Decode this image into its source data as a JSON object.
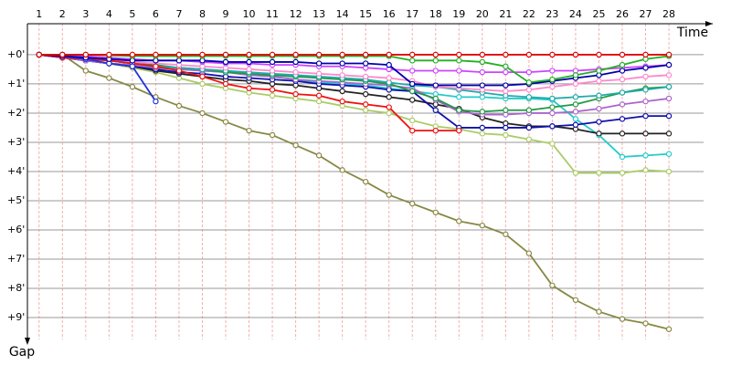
{
  "chart_data": {
    "type": "line",
    "x_label": "Time",
    "y_label": "Gap",
    "x": [
      1,
      2,
      3,
      4,
      5,
      6,
      7,
      8,
      9,
      10,
      11,
      12,
      13,
      14,
      15,
      16,
      17,
      18,
      19,
      20,
      21,
      22,
      23,
      24,
      25,
      26,
      27,
      28
    ],
    "xlim": [
      0.5,
      29.8
    ],
    "xticks": [
      1,
      2,
      3,
      4,
      5,
      6,
      7,
      8,
      9,
      10,
      11,
      12,
      13,
      14,
      15,
      16,
      17,
      18,
      19,
      20,
      21,
      22,
      23,
      24,
      25,
      26,
      27,
      28
    ],
    "ylim": [
      -1.06,
      10
    ],
    "y_inverted": true,
    "yticks": [
      {
        "value": 0,
        "label": "+0'"
      },
      {
        "value": 1,
        "label": "+1'"
      },
      {
        "value": 2,
        "label": "+2'"
      },
      {
        "value": 3,
        "label": "+3'"
      },
      {
        "value": 4,
        "label": "+4'"
      },
      {
        "value": 5,
        "label": "+5'"
      },
      {
        "value": 6,
        "label": "+6'"
      },
      {
        "value": 7,
        "label": "+7'"
      },
      {
        "value": 8,
        "label": "+8'"
      },
      {
        "value": 9,
        "label": "+9'"
      }
    ],
    "grid": true,
    "series": [
      {
        "color": "#888844",
        "values": [
          0,
          0,
          0.55,
          0.8,
          1.1,
          1.45,
          1.75,
          2.0,
          2.3,
          2.6,
          2.75,
          3.1,
          3.45,
          3.95,
          4.35,
          4.8,
          5.1,
          5.4,
          5.7,
          5.85,
          6.15,
          6.8,
          7.9,
          8.4,
          8.8,
          9.05,
          9.2,
          9.4
        ]
      },
      {
        "color": "#aacc66",
        "values": [
          0,
          0.1,
          0.2,
          0.3,
          0.45,
          0.6,
          0.8,
          1.0,
          1.15,
          1.3,
          1.4,
          1.5,
          1.6,
          1.75,
          1.9,
          2.0,
          2.25,
          2.45,
          2.55,
          2.7,
          2.75,
          2.9,
          3.05,
          4.05,
          4.05,
          4.05,
          3.95,
          4.0
        ]
      },
      {
        "color": "#22cccc",
        "values": [
          0,
          0.1,
          0.2,
          0.3,
          0.35,
          0.45,
          0.5,
          0.55,
          0.6,
          0.65,
          0.75,
          0.85,
          0.95,
          1.0,
          1.05,
          1.15,
          1.25,
          1.35,
          1.45,
          1.45,
          1.5,
          1.5,
          1.55,
          2.2,
          2.75,
          3.5,
          3.45,
          3.4
        ]
      },
      {
        "color": "#222222",
        "values": [
          0,
          0.1,
          0.2,
          0.3,
          0.4,
          0.55,
          0.65,
          0.75,
          0.85,
          0.9,
          1.0,
          1.05,
          1.15,
          1.25,
          1.35,
          1.45,
          1.55,
          1.7,
          1.85,
          2.15,
          2.35,
          2.45,
          2.45,
          2.55,
          2.7,
          2.7,
          2.7,
          2.7
        ]
      },
      {
        "color": "#1111aa",
        "values": [
          0,
          0.1,
          0.2,
          0.3,
          0.4,
          0.5,
          0.6,
          0.65,
          0.75,
          0.8,
          0.85,
          0.9,
          1.0,
          1.05,
          1.1,
          1.2,
          1.25,
          1.9,
          2.5,
          2.5,
          2.5,
          2.5,
          2.45,
          2.4,
          2.3,
          2.2,
          2.1,
          2.1
        ]
      },
      {
        "color": "#aa66cc",
        "values": [
          0,
          0.1,
          0.2,
          0.3,
          0.35,
          0.45,
          0.5,
          0.55,
          0.6,
          0.7,
          0.75,
          0.85,
          0.9,
          0.95,
          1.0,
          1.05,
          1.15,
          1.55,
          1.95,
          2.05,
          2.05,
          2.0,
          2.0,
          1.95,
          1.85,
          1.7,
          1.6,
          1.5
        ]
      },
      {
        "color": "#229944",
        "values": [
          0,
          0.05,
          0.1,
          0.2,
          0.3,
          0.35,
          0.45,
          0.5,
          0.6,
          0.65,
          0.7,
          0.75,
          0.8,
          0.85,
          0.9,
          1.0,
          1.25,
          1.5,
          1.9,
          1.95,
          1.9,
          1.9,
          1.8,
          1.7,
          1.5,
          1.3,
          1.15,
          1.1
        ]
      },
      {
        "color": "#22aaaa",
        "values": [
          0,
          0.05,
          0.15,
          0.2,
          0.3,
          0.4,
          0.45,
          0.5,
          0.55,
          0.6,
          0.65,
          0.7,
          0.75,
          0.8,
          0.85,
          0.95,
          1.05,
          1.1,
          1.2,
          1.3,
          1.4,
          1.45,
          1.5,
          1.45,
          1.4,
          1.3,
          1.2,
          1.1
        ]
      },
      {
        "color": "#ff88cc",
        "values": [
          0,
          0.05,
          0.1,
          0.2,
          0.25,
          0.3,
          0.35,
          0.4,
          0.45,
          0.5,
          0.55,
          0.6,
          0.65,
          0.7,
          0.75,
          0.8,
          0.9,
          1.1,
          1.15,
          1.2,
          1.25,
          1.2,
          1.1,
          1.0,
          0.9,
          0.85,
          0.75,
          0.7
        ]
      },
      {
        "color": "#ee1111",
        "values": [
          0,
          0.1,
          0.15,
          0.2,
          0.3,
          0.4,
          0.55,
          0.75,
          1.0,
          1.15,
          1.2,
          1.35,
          1.4,
          1.6,
          1.7,
          1.8,
          2.6,
          2.6,
          2.6,
          null,
          null,
          null,
          null,
          null,
          null,
          null,
          null,
          null
        ]
      },
      {
        "color": "#2233dd",
        "values": [
          0,
          0.05,
          0.15,
          0.3,
          0.4,
          1.6,
          null,
          null,
          null,
          null,
          null,
          null,
          null,
          null,
          null,
          null,
          null,
          null,
          null,
          null,
          null,
          null,
          null,
          null,
          null,
          null,
          null,
          null
        ]
      },
      {
        "color": "#cc44ff",
        "values": [
          0,
          0,
          0.05,
          0.1,
          0.15,
          0.2,
          0.2,
          0.25,
          0.3,
          0.3,
          0.35,
          0.35,
          0.4,
          0.4,
          0.45,
          0.5,
          0.55,
          0.55,
          0.55,
          0.6,
          0.6,
          0.6,
          0.55,
          0.55,
          0.5,
          0.45,
          0.4,
          0.35
        ]
      },
      {
        "color": "#0000aa",
        "values": [
          0,
          0.05,
          0.1,
          0.15,
          0.2,
          0.2,
          0.2,
          0.2,
          0.25,
          0.25,
          0.25,
          0.25,
          0.3,
          0.3,
          0.3,
          0.35,
          1.0,
          1.05,
          1.05,
          1.05,
          1.05,
          1.0,
          0.9,
          0.8,
          0.7,
          0.55,
          0.45,
          0.35
        ]
      },
      {
        "color": "#22b022",
        "values": [
          0,
          0,
          0,
          0.02,
          0.05,
          0.05,
          0.05,
          0.05,
          0.05,
          0.05,
          0.05,
          0.05,
          0.05,
          0.05,
          0.05,
          0.05,
          0.2,
          0.2,
          0.2,
          0.25,
          0.4,
          0.95,
          0.85,
          0.7,
          0.55,
          0.35,
          0.15,
          0.05
        ]
      },
      {
        "color": "#e00000",
        "values": [
          0,
          0,
          0,
          0,
          0,
          0,
          0,
          0,
          0,
          0,
          0,
          0,
          0,
          0,
          0,
          0,
          0,
          0,
          0,
          0,
          0,
          0,
          0,
          0,
          0,
          0,
          0,
          0
        ]
      }
    ]
  }
}
